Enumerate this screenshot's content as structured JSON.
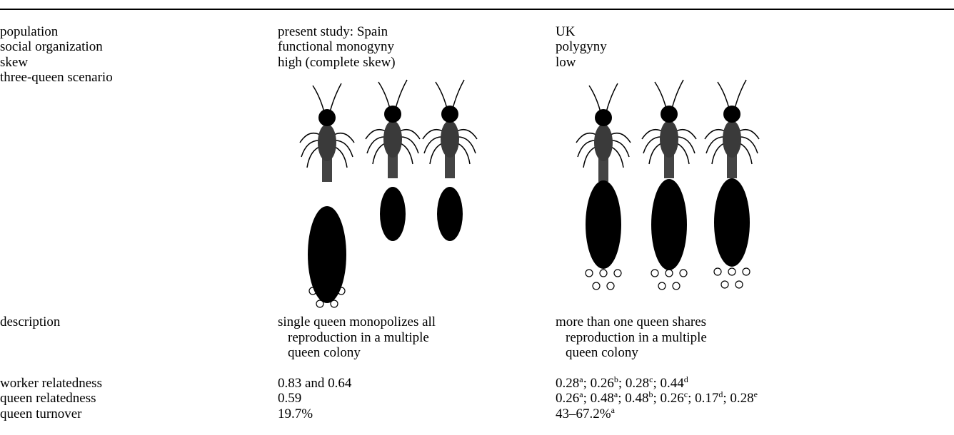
{
  "table": {
    "rows": [
      {
        "label": "population",
        "cells": [
          "present study: Spain",
          "UK"
        ]
      },
      {
        "label": "social organization",
        "cells": [
          "functional monogyny",
          "polygyny"
        ]
      },
      {
        "label": "skew",
        "cells": [
          "high (complete skew)",
          "low"
        ]
      },
      {
        "label": "three-queen scenario"
      },
      {
        "label": "description",
        "cells": [
          [
            "single queen monopolizes all",
            "reproduction in a multiple",
            "queen colony"
          ],
          [
            "more than one queen shares",
            "reproduction in a multiple",
            "queen colony"
          ]
        ]
      },
      {
        "label": "worker relatedness",
        "cells": [
          "0.83 and 0.64",
          [
            {
              "text": "0.28",
              "sup": "a"
            },
            {
              "text": "; 0.26",
              "sup": "b"
            },
            {
              "text": "; 0.28",
              "sup": "c"
            },
            {
              "text": "; 0.44",
              "sup": "d"
            }
          ]
        ]
      },
      {
        "label": "queen relatedness",
        "cells": [
          "0.59",
          [
            {
              "text": "0.26",
              "sup": "a"
            },
            {
              "text": "; 0.48",
              "sup": "a"
            },
            {
              "text": "; 0.48",
              "sup": "b"
            },
            {
              "text": "; 0.26",
              "sup": "c"
            },
            {
              "text": "; 0.17",
              "sup": "d"
            },
            {
              "text": "; 0.28",
              "sup": "e"
            }
          ]
        ]
      },
      {
        "label": "queen turnover",
        "cells": [
          "19.7%",
          [
            {
              "text": "43–67.2%",
              "sup": "a"
            }
          ]
        ]
      }
    ]
  }
}
